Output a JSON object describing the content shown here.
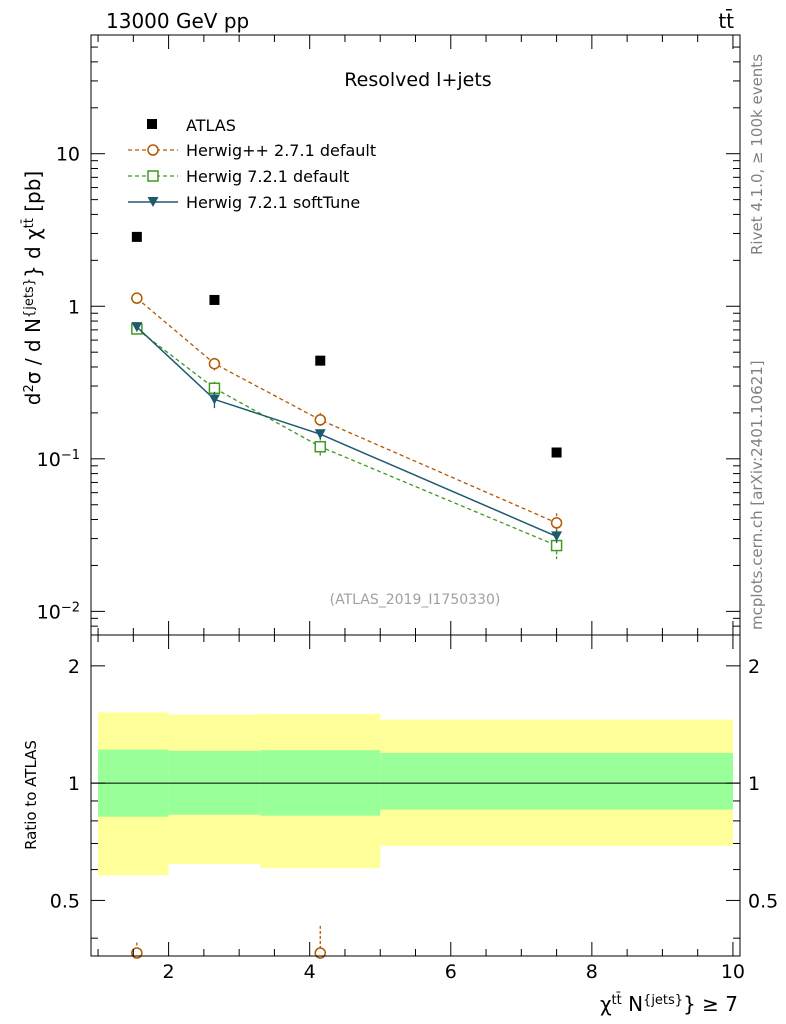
{
  "header": {
    "energy_label": "13000 GeV pp",
    "process_label": "tt̄"
  },
  "side_text": {
    "rivet": "Rivet 4.1.0, ≥ 100k events",
    "mcplots": "mcplots.cern.ch [arXiv:2401.10621]"
  },
  "chart_data": [
    {
      "type": "scatter",
      "panel": "main",
      "title": "Resolved l+jets",
      "watermark": "(ATLAS_2019_I1750330)",
      "ylabel": "d²σ / d N^{jets} } d χ^{tt̄} [pb]",
      "yscale": "log",
      "ylim": [
        0.007,
        60
      ],
      "xlim": [
        0.9,
        10.1
      ],
      "ytick_labels": [
        {
          "value": 0.01,
          "base": "10",
          "exp": "−2"
        },
        {
          "value": 0.1,
          "base": "10",
          "exp": "−1"
        },
        {
          "value": 1,
          "base": "1",
          "exp": ""
        },
        {
          "value": 10,
          "base": "10",
          "exp": ""
        }
      ],
      "bins": [
        [
          1,
          2
        ],
        [
          2,
          3.3
        ],
        [
          3.3,
          5
        ],
        [
          5,
          10
        ]
      ],
      "series": [
        {
          "name": "ATLAS",
          "style": "data",
          "color": "#000000",
          "x": [
            1.55,
            2.65,
            4.15,
            7.5
          ],
          "y": [
            2.85,
            1.1,
            0.44,
            0.11
          ]
        },
        {
          "name": "Herwig++ 2.7.1 default",
          "style": "mc-circle",
          "color": "#b35900",
          "x": [
            1.55,
            2.65,
            4.15,
            7.5
          ],
          "y": [
            1.13,
            0.42,
            0.18,
            0.038
          ],
          "err_up": [
            0.05,
            0.04,
            0.02,
            0.006
          ],
          "err_down": [
            0.05,
            0.04,
            0.02,
            0.006
          ]
        },
        {
          "name": "Herwig 7.2.1 default",
          "style": "mc-square",
          "color": "#3f9a1f",
          "x": [
            1.55,
            2.65,
            4.15,
            7.5
          ],
          "y": [
            0.71,
            0.29,
            0.12,
            0.027
          ],
          "err_up": [
            0.04,
            0.03,
            0.018,
            0.004
          ],
          "err_down": [
            0.04,
            0.03,
            0.018,
            0.005
          ]
        },
        {
          "name": "Herwig 7.2.1 softTune",
          "style": "mc-triangle",
          "color": "#1d5a6e",
          "x": [
            1.55,
            2.65,
            4.15,
            7.5
          ],
          "y": [
            0.73,
            0.245,
            0.145,
            0.031
          ],
          "err_up": [
            0.03,
            0.03,
            0.01,
            0.003
          ],
          "err_down": [
            0.03,
            0.03,
            0.01,
            0.003
          ]
        }
      ]
    },
    {
      "type": "band",
      "panel": "ratio",
      "ylabel": "Ratio to ATLAS",
      "xlabel": "χ^{tt̄} N^{jets} } ≥ 7",
      "ylim": [
        0.36,
        2.4
      ],
      "xlim": [
        0.9,
        10.1
      ],
      "ytick_labels": [
        {
          "value": 0.5,
          "label": "0.5"
        },
        {
          "value": 1,
          "label": "1"
        },
        {
          "value": 2,
          "label": "2"
        }
      ],
      "xtick_labels": [
        {
          "value": 2,
          "label": "2"
        },
        {
          "value": 4,
          "label": "4"
        },
        {
          "value": 6,
          "label": "6"
        },
        {
          "value": 8,
          "label": "8"
        },
        {
          "value": 10,
          "label": "10"
        }
      ],
      "bins": [
        [
          1,
          2
        ],
        [
          2,
          3.3
        ],
        [
          3.3,
          5
        ],
        [
          5,
          10
        ]
      ],
      "stat_band": {
        "color": "#99ff99",
        "low": [
          0.82,
          0.83,
          0.825,
          0.855
        ],
        "high": [
          1.22,
          1.21,
          1.215,
          1.195
        ]
      },
      "total_band": {
        "color": "#ffff99",
        "low": [
          0.58,
          0.62,
          0.605,
          0.69
        ],
        "high": [
          1.52,
          1.5,
          1.505,
          1.455
        ]
      },
      "offscale_markers": [
        {
          "series": "Herwig++ 2.7.1 default",
          "x": 1.55,
          "err_top": 0.39
        },
        {
          "series": "Herwig++ 2.7.1 default",
          "x": 4.15,
          "err_top": 0.43
        }
      ]
    }
  ]
}
